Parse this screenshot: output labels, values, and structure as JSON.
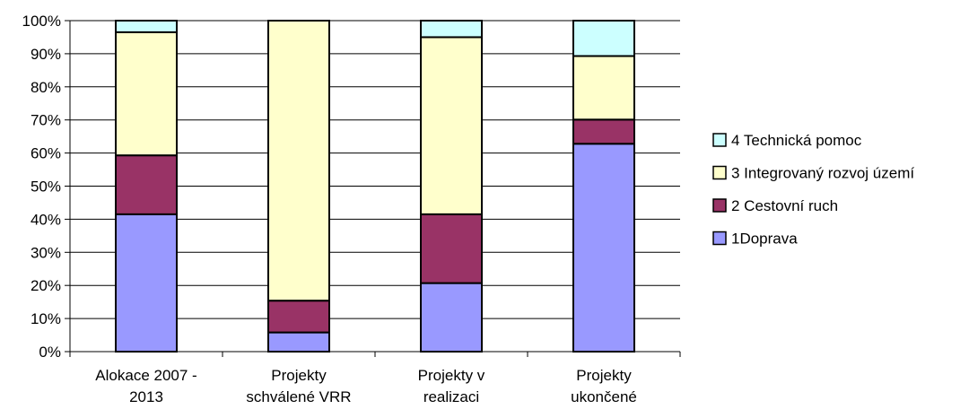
{
  "chart_data": {
    "type": "bar",
    "stacked": "percent",
    "categories": [
      [
        "Alokace 2007 -",
        "2013"
      ],
      [
        "Projekty",
        "schválené VRR"
      ],
      [
        "Projekty v",
        "realizaci"
      ],
      [
        "Projekty",
        "ukončené"
      ]
    ],
    "series": [
      {
        "name": "1Doprava",
        "color": "#9999ff",
        "values": [
          41.5,
          5.8,
          20.7,
          62.8
        ]
      },
      {
        "name": "2 Cestovní ruch",
        "color": "#993366",
        "values": [
          17.8,
          9.6,
          20.8,
          7.3
        ]
      },
      {
        "name": "3 Integrovaný rozvoj území",
        "color": "#ffffcc",
        "values": [
          37.2,
          84.6,
          53.5,
          19.2
        ]
      },
      {
        "name": "4 Technická pomoc",
        "color": "#ccffff",
        "values": [
          3.5,
          0.0,
          5.0,
          10.7
        ]
      }
    ],
    "ylim": [
      0,
      100
    ],
    "yticks": [
      "0%",
      "10%",
      "20%",
      "30%",
      "40%",
      "50%",
      "60%",
      "70%",
      "80%",
      "90%",
      "100%"
    ],
    "grid": true,
    "legend_position": "right"
  }
}
